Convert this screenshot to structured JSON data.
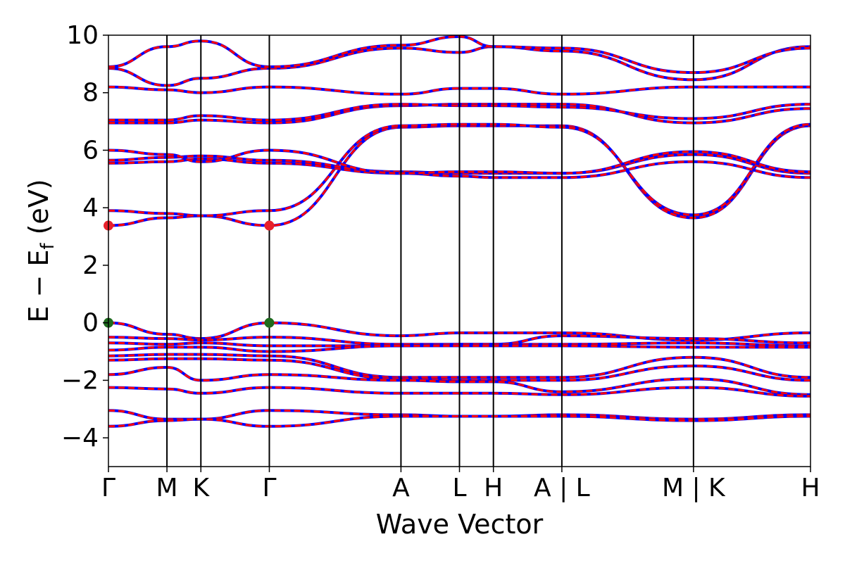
{
  "chart_data": {
    "type": "line",
    "title": "",
    "xlabel": "Wave Vector",
    "ylabel": "E − E_f (eV)",
    "ylabel_parts": {
      "main": "E − E",
      "sub": "f",
      "unit": " (eV)"
    },
    "ylim": [
      -5,
      10
    ],
    "yticks": [
      -4,
      -2,
      0,
      2,
      4,
      6,
      8,
      10
    ],
    "ytick_labels": [
      "−4",
      "−2",
      "0",
      "2",
      "4",
      "6",
      "8",
      "10"
    ],
    "xlim": [
      0,
      12
    ],
    "kpath": [
      {
        "label": "Γ",
        "x": 0
      },
      {
        "label": "M",
        "x": 1
      },
      {
        "label": "K",
        "x": 1.58
      },
      {
        "label": "Γ",
        "x": 2.75
      },
      {
        "label": "A",
        "x": 5
      },
      {
        "label": "L",
        "x": 6
      },
      {
        "label": "H",
        "x": 6.58
      },
      {
        "label": "A | L",
        "x": 7.75
      },
      {
        "label": "M | K",
        "x": 10
      },
      {
        "label": "H",
        "x": 12
      }
    ],
    "grid": false,
    "legend": "none",
    "colors": {
      "red": "#ff0000",
      "blue": "#0000ff",
      "cbm_marker": "#e8202a",
      "vbm_marker": "#1e6b1e"
    },
    "band_gap_markers": [
      {
        "type": "CBM",
        "x": 0,
        "y": 3.38
      },
      {
        "type": "CBM",
        "x": 2.75,
        "y": 3.38
      },
      {
        "type": "VBM",
        "x": 0,
        "y": 0.0
      },
      {
        "type": "VBM",
        "x": 2.75,
        "y": 0.0
      }
    ],
    "series": [
      {
        "x": [
          0,
          1,
          1.58,
          2.75,
          5,
          6,
          6.58,
          7.75,
          10,
          12
        ],
        "y": [
          3.38,
          3.65,
          3.72,
          3.38,
          6.8,
          6.85,
          6.85,
          6.85,
          3.65,
          6.85
        ]
      },
      {
        "x": [
          0,
          1,
          1.58,
          2.75,
          5,
          6,
          6.58,
          7.75,
          10,
          12
        ],
        "y": [
          3.9,
          3.8,
          3.72,
          3.9,
          6.85,
          6.9,
          6.9,
          6.8,
          3.75,
          6.9
        ]
      },
      {
        "x": [
          0,
          1,
          1.58,
          2.75,
          5,
          6,
          6.58,
          7.75,
          10,
          12
        ],
        "y": [
          5.55,
          5.6,
          5.7,
          5.55,
          5.2,
          5.1,
          5.05,
          5.05,
          5.6,
          5.05
        ]
      },
      {
        "x": [
          0,
          1,
          1.58,
          2.75,
          5,
          6,
          6.58,
          7.75,
          10,
          12
        ],
        "y": [
          5.65,
          5.75,
          5.8,
          5.65,
          5.25,
          5.2,
          5.2,
          5.2,
          5.85,
          5.2
        ]
      },
      {
        "x": [
          0,
          1,
          1.58,
          2.75,
          5,
          6,
          6.58,
          7.75,
          10,
          12
        ],
        "y": [
          6.0,
          5.85,
          5.6,
          6.0,
          5.2,
          5.25,
          5.25,
          5.2,
          5.95,
          5.25
        ]
      },
      {
        "x": [
          0,
          1,
          1.58,
          2.75,
          5,
          6,
          6.58,
          7.75,
          10,
          12
        ],
        "y": [
          6.95,
          6.95,
          7.05,
          6.95,
          7.55,
          7.6,
          7.6,
          7.6,
          6.95,
          7.45
        ]
      },
      {
        "x": [
          0,
          1,
          1.58,
          2.75,
          5,
          6,
          6.58,
          7.75,
          10,
          12
        ],
        "y": [
          7.05,
          7.05,
          7.2,
          7.05,
          7.6,
          7.55,
          7.55,
          7.5,
          7.1,
          7.6
        ]
      },
      {
        "x": [
          0,
          1,
          1.58,
          2.75,
          5,
          6,
          6.58,
          7.75,
          10,
          12
        ],
        "y": [
          8.2,
          8.1,
          8.0,
          8.2,
          7.95,
          8.15,
          8.15,
          7.95,
          8.2,
          8.2
        ]
      },
      {
        "x": [
          0,
          1,
          1.58,
          2.75,
          5,
          6,
          6.58,
          7.75,
          10,
          12
        ],
        "y": [
          8.85,
          8.25,
          8.5,
          8.85,
          9.55,
          9.4,
          9.6,
          9.45,
          8.45,
          9.6
        ]
      },
      {
        "x": [
          0,
          1,
          1.58,
          2.75,
          5,
          6,
          6.58,
          7.75,
          10,
          12
        ],
        "y": [
          8.9,
          9.6,
          9.8,
          8.9,
          9.65,
          9.95,
          9.6,
          9.55,
          8.7,
          9.55
        ]
      },
      {
        "x": [
          0,
          1,
          1.58,
          2.75,
          5,
          6,
          6.58,
          7.75,
          10,
          12
        ],
        "y": [
          0.0,
          -0.4,
          -0.55,
          0.0,
          -0.45,
          -0.35,
          -0.35,
          -0.35,
          -0.6,
          -0.35
        ]
      },
      {
        "x": [
          0,
          1,
          1.58,
          2.75,
          5,
          6,
          6.58,
          7.75,
          10,
          12
        ],
        "y": [
          -0.5,
          -0.55,
          -0.6,
          -0.5,
          -0.75,
          -0.75,
          -0.75,
          -0.45,
          -0.55,
          -0.7
        ]
      },
      {
        "x": [
          0,
          1,
          1.58,
          2.75,
          5,
          6,
          6.58,
          7.75,
          10,
          12
        ],
        "y": [
          -0.7,
          -0.75,
          -0.7,
          -0.8,
          -0.8,
          -0.75,
          -0.75,
          -0.75,
          -0.7,
          -0.8
        ]
      },
      {
        "x": [
          0,
          1,
          1.58,
          2.75,
          5,
          6,
          6.58,
          7.75,
          10,
          12
        ],
        "y": [
          -0.95,
          -0.85,
          -0.85,
          -1.0,
          -0.8,
          -0.8,
          -0.8,
          -0.8,
          -0.85,
          -0.85
        ]
      },
      {
        "x": [
          0,
          1,
          1.58,
          2.75,
          5,
          6,
          6.58,
          7.75,
          10,
          12
        ],
        "y": [
          -1.15,
          -1.1,
          -1.1,
          -1.15,
          -1.9,
          -1.9,
          -1.9,
          -1.9,
          -1.2,
          -1.9
        ]
      },
      {
        "x": [
          0,
          1,
          1.58,
          2.75,
          5,
          6,
          6.58,
          7.75,
          10,
          12
        ],
        "y": [
          -1.3,
          -1.25,
          -1.25,
          -1.3,
          -1.95,
          -2.0,
          -2.0,
          -2.0,
          -1.5,
          -2.0
        ]
      },
      {
        "x": [
          0,
          1,
          1.58,
          2.75,
          5,
          6,
          6.58,
          7.75,
          10,
          12
        ],
        "y": [
          -1.8,
          -1.55,
          -2.0,
          -1.8,
          -2.0,
          -2.05,
          -2.05,
          -2.4,
          -1.95,
          -2.5
        ]
      },
      {
        "x": [
          0,
          1,
          1.58,
          2.75,
          5,
          6,
          6.58,
          7.75,
          10,
          12
        ],
        "y": [
          -2.25,
          -2.3,
          -2.45,
          -2.25,
          -2.45,
          -2.45,
          -2.45,
          -2.5,
          -2.25,
          -2.55
        ]
      },
      {
        "x": [
          0,
          1,
          1.58,
          2.75,
          5,
          6,
          6.58,
          7.75,
          10,
          12
        ],
        "y": [
          -3.05,
          -3.35,
          -3.35,
          -3.05,
          -3.2,
          -3.25,
          -3.25,
          -3.2,
          -3.35,
          -3.2
        ]
      },
      {
        "x": [
          0,
          1,
          1.58,
          2.75,
          5,
          6,
          6.58,
          7.75,
          10,
          12
        ],
        "y": [
          -3.6,
          -3.4,
          -3.35,
          -3.6,
          -3.25,
          -3.25,
          -3.25,
          -3.25,
          -3.4,
          -3.25
        ]
      }
    ]
  }
}
